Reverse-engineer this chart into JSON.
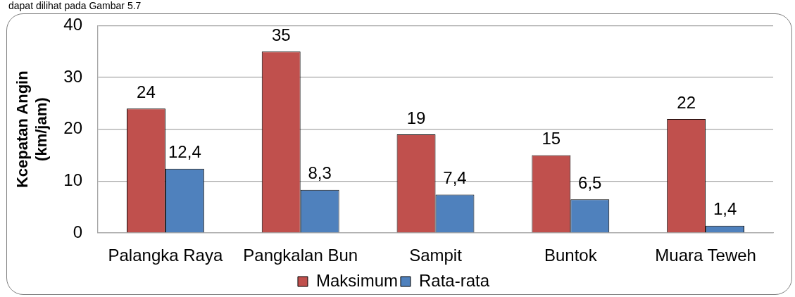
{
  "chart_data": {
    "type": "bar",
    "ylabel": "Kcepatan Angin (km/jam)",
    "categories": [
      "Palangka Raya",
      "Pangkalan Bun",
      "Sampit",
      "Buntok",
      "Muara Teweh"
    ],
    "series": [
      {
        "name": "Maksimum",
        "color": "#c0504d",
        "values": [
          24,
          35,
          19,
          15,
          22
        ],
        "value_labels": [
          "24",
          "35",
          "19",
          "15",
          "22"
        ]
      },
      {
        "name": "Rata-rata",
        "color": "#4f81bd",
        "values": [
          12.4,
          8.3,
          7.4,
          6.5,
          1.4
        ],
        "value_labels": [
          "12,4",
          "8,3",
          "7,4",
          "6,5",
          "1,4"
        ]
      }
    ],
    "ylim": [
      0,
      40
    ],
    "yticks": [
      0,
      10,
      20,
      30,
      40
    ],
    "grid": "y",
    "legend": "bottom",
    "annotations": [
      "dapat dilihat pada Gambar 5.7"
    ]
  }
}
